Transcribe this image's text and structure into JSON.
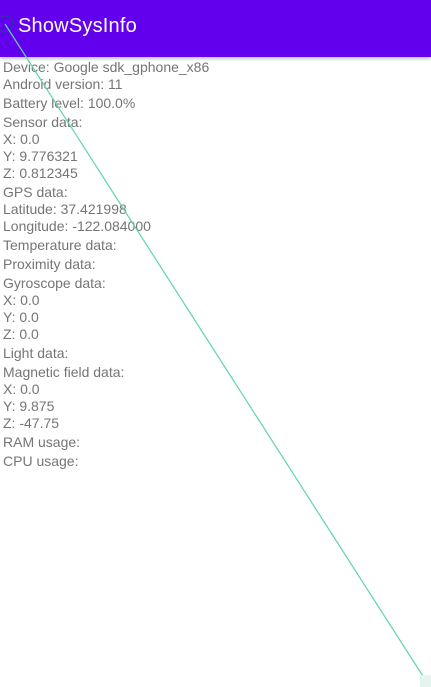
{
  "app_bar": {
    "title": "ShowSysInfo",
    "color": "#6200EE"
  },
  "info": {
    "device": "Device: Google sdk_gphone_x86",
    "android_version": "Android version: 11",
    "battery_level": "Battery level: 100.0%",
    "sensor": {
      "header": "Sensor data:",
      "x": "X: 0.0",
      "y": "Y: 9.776321",
      "z": "Z: 0.812345"
    },
    "gps": {
      "header": "GPS data:",
      "latitude": "Latitude: 37.421998",
      "longitude": "Longitude: -122.084000"
    },
    "temperature_header": "Temperature data:",
    "proximity_header": "Proximity data:",
    "gyroscope": {
      "header": "Gyroscope data:",
      "x": "X: 0.0",
      "y": "Y: 0.0",
      "z": "Z: 0.0"
    },
    "light_header": "Light data:",
    "magnetic": {
      "header": "Magnetic field data:",
      "x": "X: 0.0",
      "y": "Y: 9.875",
      "z": "Z: -47.75"
    },
    "ram_usage": "RAM usage:",
    "cpu_usage": "CPU usage:"
  },
  "overlay": {
    "line_color": "#5fd3b5"
  }
}
